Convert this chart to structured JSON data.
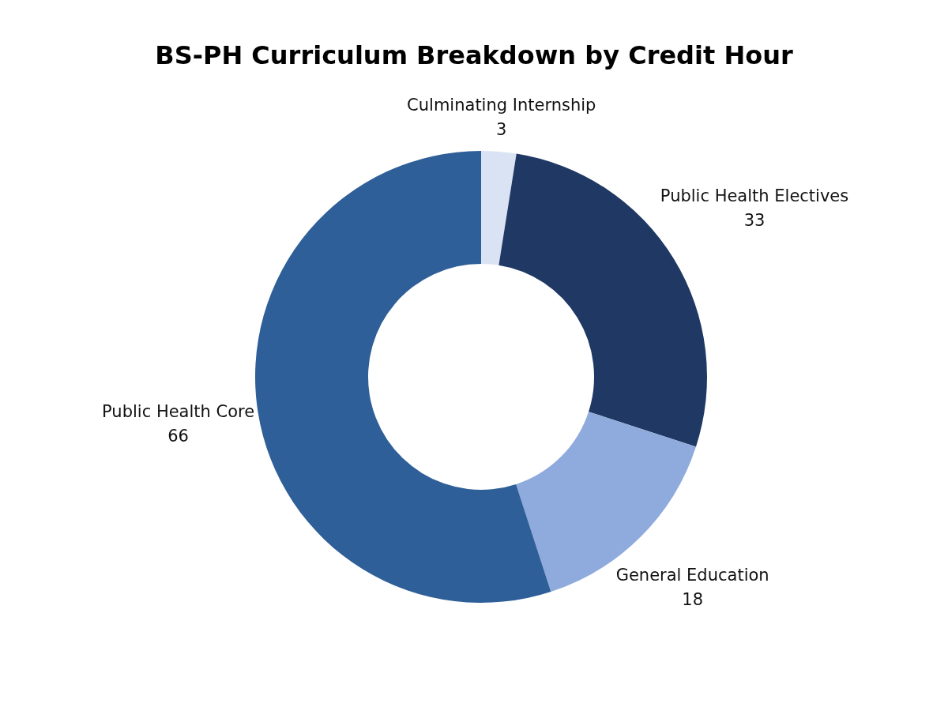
{
  "chart_data": {
    "type": "donut",
    "title": "BS-PH Curriculum Breakdown by Credit Hour",
    "categories": [
      "Culminating Internship",
      "Public Health Electives",
      "General Education",
      "Public Health Core"
    ],
    "values": [
      3,
      33,
      18,
      66
    ],
    "colors": [
      "#dae3f3",
      "#203864",
      "#8faadc",
      "#2f5f98"
    ],
    "data_labels": true
  }
}
